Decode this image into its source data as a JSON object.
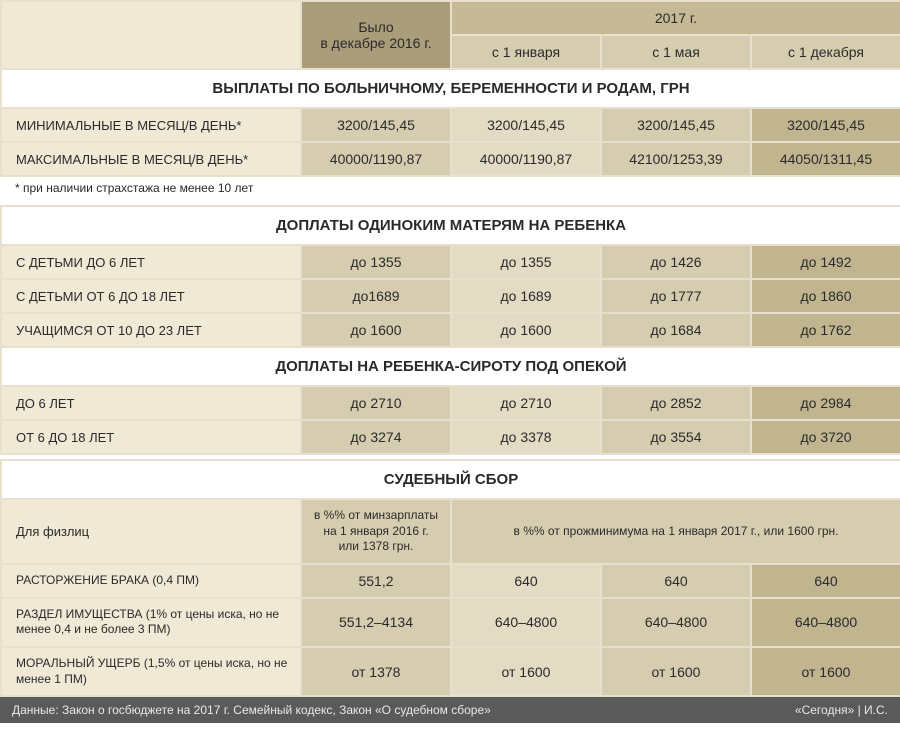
{
  "colors": {
    "border": "#e8e0cc",
    "hdr_dark": "#aa9e7a",
    "hdr_med": "#c6ba96",
    "hdr_light": "#d6cdb0",
    "rowlabel": "#efe9d6",
    "val_c1": "#d6cdb0",
    "val_c2": "#e3dbc3",
    "val_c3": "#d6cdb0",
    "val_c4": "#c1b590",
    "footer_bg": "#5a5a5a",
    "footer_fg": "#e8e8e8"
  },
  "header": {
    "col1_line1": "Было",
    "col1_line2": "в декабре 2016 г.",
    "col_span_top": "2017 г.",
    "col2": "с 1 января",
    "col3": "с 1 мая",
    "col4": "с 1 декабря"
  },
  "sec1": {
    "title": "ВЫПЛАТЫ ПО БОЛЬНИЧНОМУ, БЕРЕМЕННОСТИ И РОДАМ, ГРН",
    "rows": [
      {
        "label": "МИНИМАЛЬНЫЕ В МЕСЯЦ/В ДЕНЬ*",
        "v": [
          "3200/145,45",
          "3200/145,45",
          "3200/145,45",
          "3200/145,45"
        ]
      },
      {
        "label": "МАКСИМАЛЬНЫЕ В МЕСЯЦ/В ДЕНЬ*",
        "v": [
          "40000/1190,87",
          "40000/1190,87",
          "42100/1253,39",
          "44050/1311,45"
        ]
      }
    ],
    "note": "* при наличии страхстажа не менее 10 лет"
  },
  "sec2": {
    "title": "ДОПЛАТЫ ОДИНОКИМ МАТЕРЯМ НА РЕБЕНКА",
    "rows": [
      {
        "label": "С ДЕТЬМИ ДО 6 ЛЕТ",
        "v": [
          "до 1355",
          "до 1355",
          "до 1426",
          "до 1492"
        ]
      },
      {
        "label": "С ДЕТЬМИ ОТ 6 ДО 18 ЛЕТ",
        "v": [
          "до1689",
          "до 1689",
          "до 1777",
          "до 1860"
        ]
      },
      {
        "label": "УЧАЩИМСЯ ОТ 10 ДО 23 ЛЕТ",
        "v": [
          "до 1600",
          "до 1600",
          "до 1684",
          "до 1762"
        ]
      }
    ]
  },
  "sec3": {
    "title": "ДОПЛАТЫ НА РЕБЕНКА-СИРОТУ ПОД ОПЕКОЙ",
    "rows": [
      {
        "label": "ДО 6 ЛЕТ",
        "v": [
          "до 2710",
          "до 2710",
          "до 2852",
          "до 2984"
        ]
      },
      {
        "label": "ОТ 6 ДО 18 ЛЕТ",
        "v": [
          "до 3274",
          "до 3378",
          "до 3554",
          "до 3720"
        ]
      }
    ]
  },
  "sec4": {
    "title": "СУДЕБНЫЙ СБОР",
    "subhead": {
      "label": "Для физлиц",
      "col1": "в %% от минзарплаты на 1 января 2016 г. или 1378 грн.",
      "col_span": "в %% от прожминимума на 1 января 2017 г., или 1600 грн."
    },
    "rows": [
      {
        "label": "РАСТОРЖЕНИЕ БРАКА (0,4 ПМ)",
        "v": [
          "551,2",
          "640",
          "640",
          "640"
        ]
      },
      {
        "label": "РАЗДЕЛ ИМУЩЕСТВА (1% от цены иска, но не менее 0,4 и не более 3 ПМ)",
        "v": [
          "551,2–4134",
          "640–4800",
          "640–4800",
          "640–4800"
        ]
      },
      {
        "label": "МОРАЛЬНЫЙ УЩЕРБ (1,5% от цены иска, но не менее 1 ПМ)",
        "v": [
          "от 1378",
          "от 1600",
          "от 1600",
          "от 1600"
        ]
      }
    ]
  },
  "footer": {
    "left": "Данные: Закон о госбюджете на 2017 г. Семейный кодекс, Закон «О судебном сборе»",
    "right": "«Сегодня» | И.С."
  }
}
